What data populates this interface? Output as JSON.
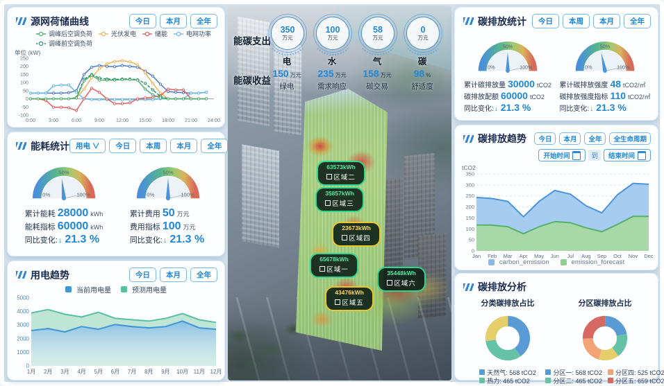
{
  "colors": {
    "accent": "#1f86d8",
    "canvas_bg": "#d3e1ec",
    "panel_bg": "#fdfeff",
    "title_dark": "#192b4d"
  },
  "panels": {
    "source_curve": {
      "title": "源网荷储曲线",
      "buttons": [
        "今日",
        "本月",
        "全年"
      ],
      "unit_label": "单位 (kW)",
      "legend": [
        {
          "label": "调峰后空调负荷",
          "color": "#4cb06a",
          "dashed": false
        },
        {
          "label": "光伏发电",
          "color": "#f0b254",
          "dashed": false
        },
        {
          "label": "储能",
          "color": "#e06060",
          "dashed": false
        },
        {
          "label": "电网功率",
          "color": "#66b8e8",
          "dashed": false
        },
        {
          "label": "调峰前空调负荷",
          "color": "#2f8f6e",
          "dashed": true
        }
      ]
    },
    "energy_stats": {
      "title": "能耗统计",
      "dropdown_label": "用电",
      "buttons": [
        "今日",
        "本周",
        "本月",
        "全年"
      ],
      "gauges": [
        {
          "percent": 46.7,
          "scale": [
            "0%",
            "50%",
            "100%"
          ],
          "rows": [
            {
              "label": "累计能耗",
              "value": "28000",
              "unit": "kWh"
            },
            {
              "label": "能耗指标",
              "value": "60000",
              "unit": "kWh"
            }
          ],
          "change": {
            "label": "同比变化:",
            "arrow": "↓",
            "value": "21.3 %"
          }
        },
        {
          "percent": 50,
          "scale": [
            "0%",
            "50%",
            "100%"
          ],
          "rows": [
            {
              "label": "累计费用",
              "value": "50",
              "unit": "万元"
            },
            {
              "label": "费用指标",
              "value": "100",
              "unit": "万元"
            }
          ],
          "change": {
            "label": "同比变化:",
            "arrow": "↓",
            "value": "21.3 %"
          }
        }
      ]
    },
    "power_trend": {
      "title": "用电趋势",
      "buttons": [
        "今日",
        "本月",
        "全年"
      ],
      "legend": [
        {
          "label": "当前用电量",
          "color": "#3f95d5"
        },
        {
          "label": "预测用电量",
          "color": "#58c0a0"
        }
      ]
    },
    "center": {
      "expense_label": "能碳支出",
      "expense_items": [
        {
          "value": "350",
          "unit": "万元",
          "name": "电"
        },
        {
          "value": "100",
          "unit": "万元",
          "name": "水"
        },
        {
          "value": "58",
          "unit": "万元",
          "name": "气"
        },
        {
          "value": "0",
          "unit": "万元",
          "name": "碳"
        }
      ],
      "income_label": "能碳收益",
      "income_items": [
        {
          "value": "150",
          "unit": "万元",
          "name": "绿电"
        },
        {
          "value": "235",
          "unit": "万元",
          "name": "需求响应"
        },
        {
          "value": "158",
          "unit": "万元",
          "name": "碳交易"
        },
        {
          "value": "98",
          "unit": "%",
          "name": "舒适度"
        }
      ],
      "zones": [
        {
          "value": "63573kWh",
          "name": "区域二",
          "level": "green"
        },
        {
          "value": "35857kWh",
          "name": "区域三",
          "level": "green"
        },
        {
          "value": "23673kWh",
          "name": "区域四",
          "level": "yellow"
        },
        {
          "value": "65678kWh",
          "name": "区域一",
          "level": "green"
        },
        {
          "value": "35448kWh",
          "name": "区域六",
          "level": "green"
        },
        {
          "value": "43476kWh",
          "name": "区域五",
          "level": "yellow"
        }
      ]
    },
    "carbon_stats": {
      "title": "碳排放统计",
      "buttons": [
        "今日",
        "本周",
        "本月",
        "全年"
      ],
      "gauges": [
        {
          "percent": 50,
          "scale": [
            "0%",
            "50%",
            "100%"
          ],
          "rows": [
            {
              "label": "累计碳排放量",
              "value": "30000",
              "unit": "tCO2"
            },
            {
              "label": "碳排放配额",
              "value": "60000",
              "unit": "tCO2"
            }
          ],
          "change": {
            "label": "同比变化:",
            "arrow": "↓",
            "value": "21.3 %"
          }
        },
        {
          "percent": 43.6,
          "scale": [
            "0%",
            "50%",
            "100%"
          ],
          "rows": [
            {
              "label": "累计碳排放强度",
              "value": "48",
              "unit": "tCO2/㎡"
            },
            {
              "label": "碳排放强度指标",
              "value": "110",
              "unit": "tCO2/㎡"
            }
          ],
          "change": {
            "label": "同比变化:",
            "arrow": "↓",
            "value": "21.3 %"
          }
        }
      ]
    },
    "carbon_trend": {
      "title": "碳排放趋势",
      "buttons": [
        "今日",
        "本月",
        "全年",
        "全生命周期"
      ],
      "date_filter": {
        "start": "开始时间",
        "to": "到",
        "end": "结束时间"
      },
      "ylabel": "tCO2",
      "legend": [
        {
          "label": "carbon_emission",
          "color": "#8ab8e8"
        },
        {
          "label": "emission_forecast",
          "color": "#90cf90"
        }
      ]
    },
    "carbon_analysis": {
      "title": "碳排放分析",
      "unit": "tCO2"
    }
  },
  "chart_data": [
    {
      "id": "source_curve",
      "type": "line",
      "x_ticks": [
        "0:00",
        "3:00",
        "6:00",
        "9:00",
        "12:00",
        "15:00",
        "18:00",
        "21:00",
        "24:00"
      ],
      "ylim": [
        -100,
        250
      ],
      "yticks": [
        250,
        200,
        150,
        100,
        50,
        0,
        -50,
        -100
      ],
      "title": "源网荷储曲线",
      "ylabel": "单位 (kW)",
      "series": [
        {
          "name": "",
          "color": "#4a78c8",
          "values": [
            35,
            35,
            35,
            35,
            35,
            38,
            50,
            150,
            195,
            205,
            200,
            198,
            205,
            200,
            195,
            170,
            140,
            90,
            45,
            40,
            38,
            35,
            35,
            40
          ]
        },
        {
          "name": "电网功率",
          "color": "#66b8e8",
          "values": [
            35,
            35,
            35,
            80,
            85,
            85,
            40,
            0,
            -5,
            -5,
            -5,
            -5,
            -5,
            -5,
            -5,
            -5,
            -5,
            0,
            0,
            0,
            0,
            35,
            35,
            40
          ]
        },
        {
          "name": "光伏发电",
          "color": "#f0b254",
          "values": [
            0,
            0,
            0,
            0,
            0,
            0,
            5,
            60,
            130,
            185,
            215,
            230,
            235,
            228,
            210,
            160,
            95,
            35,
            0,
            0,
            0,
            0,
            0,
            0
          ]
        },
        {
          "name": "储能",
          "color": "#e06060",
          "values": [
            0,
            0,
            -10,
            -52,
            -52,
            -55,
            -72,
            0,
            65,
            40,
            0,
            -30,
            -30,
            -25,
            0,
            5,
            10,
            20,
            60,
            55,
            55,
            0,
            0,
            0
          ]
        },
        {
          "name": "调峰前空调负荷",
          "color": "#2f8f6e",
          "dashed": true,
          "values": [
            0,
            0,
            0,
            0,
            0,
            0,
            8,
            120,
            150,
            128,
            122,
            120,
            122,
            122,
            118,
            95,
            55,
            15,
            0,
            0,
            0,
            0,
            0,
            0
          ]
        },
        {
          "name": "调峰后空调负荷",
          "color": "#4cb06a",
          "values": [
            0,
            0,
            0,
            0,
            0,
            0,
            5,
            110,
            145,
            115,
            115,
            115,
            118,
            118,
            115,
            60,
            25,
            5,
            0,
            0,
            0,
            0,
            0,
            0
          ]
        }
      ]
    },
    {
      "id": "power_trend",
      "type": "area",
      "categories": [
        "1月",
        "2月",
        "3月",
        "4月",
        "5月",
        "6月",
        "7月",
        "8月",
        "9月",
        "10月",
        "11月",
        "12月"
      ],
      "ylim": [
        0,
        5000
      ],
      "yticks": [
        5000,
        4000,
        3000,
        2000,
        1000,
        0
      ],
      "title": "用电趋势",
      "series": [
        {
          "name": "预测用电量",
          "color": "#58c0a0",
          "fill": "rgba(150,212,186,0.6)",
          "values": [
            3900,
            4150,
            3800,
            3600,
            3950,
            3500,
            3400,
            3300,
            3500,
            3850,
            3400,
            3200
          ]
        },
        {
          "name": "当前用电量",
          "color": "#3f95d5",
          "fill": "gradient-blue",
          "values": [
            2600,
            2750,
            2500,
            2900,
            2700,
            3050,
            2900,
            2800,
            2900,
            3300,
            2800,
            2700
          ]
        }
      ]
    },
    {
      "id": "carbon_trend",
      "type": "area",
      "categories": [
        "Jan",
        "Feb",
        "Mar",
        "Apr",
        "May",
        "Jun",
        "Jul",
        "Aug",
        "Sep",
        "Oct",
        "Nov",
        "Dec"
      ],
      "ylim": [
        0,
        350
      ],
      "yticks": [
        350,
        300,
        250,
        200,
        150,
        100,
        50,
        0
      ],
      "title": "碳排放趋势",
      "ylabel": "tCO2",
      "grid": true,
      "series": [
        {
          "name": "carbon_emission",
          "color": "#4a94dc",
          "fill": "#a6cdf1",
          "values": [
            243,
            238,
            225,
            155,
            225,
            275,
            258,
            205,
            173,
            255,
            307,
            303
          ]
        },
        {
          "name": "emission_forecast",
          "color": "#55b06a",
          "fill": "#a8d8a8",
          "values": [
            118,
            117,
            110,
            78,
            110,
            133,
            128,
            105,
            87,
            120,
            157,
            157
          ]
        }
      ]
    },
    {
      "id": "category_donut",
      "type": "pie",
      "title": "分类碳排放占比",
      "labels": [
        "天然气",
        "热力",
        "电力"
      ],
      "values": [
        568,
        465,
        385
      ],
      "colors": [
        "#5b9bd5",
        "#66c2a5",
        "#e6cf6b"
      ],
      "unit": "tCO2"
    },
    {
      "id": "zone_donut",
      "type": "pie",
      "title": "分区碳排放占比",
      "labels": [
        "分区一",
        "分区二",
        "分区三",
        "分区四",
        "分区五"
      ],
      "values": [
        568,
        465,
        385,
        525,
        659
      ],
      "colors": [
        "#5b9bd5",
        "#66c2a5",
        "#e6cf6b",
        "#f2a477",
        "#d66a62"
      ],
      "unit": "tCO2"
    }
  ]
}
